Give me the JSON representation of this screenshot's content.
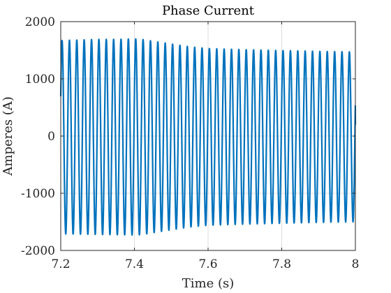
{
  "chart_data": {
    "type": "line",
    "title": "Phase Current",
    "xlabel": "Time (s)",
    "ylabel": "Amperes (A)",
    "xlim": [
      7.2,
      8.0
    ],
    "ylim": [
      -2000,
      2000
    ],
    "x_ticks": [
      7.2,
      7.4,
      7.6,
      7.8,
      8.0
    ],
    "x_tick_labels": [
      "7.2",
      "7.4",
      "7.6",
      "7.8",
      "8"
    ],
    "y_ticks": [
      -2000,
      -1000,
      0,
      1000,
      2000
    ],
    "y_tick_labels": [
      "-2000",
      "-1000",
      "0",
      "1000",
      "2000"
    ],
    "grid": true,
    "series": [
      {
        "color": "#0072BD",
        "waveform": "sinusoid",
        "frequency_hz": 50,
        "phase_at_start_deg": 25,
        "envelope": {
          "t": [
            7.2,
            7.25,
            7.3,
            7.35,
            7.4,
            7.42,
            7.45,
            7.5,
            7.55,
            7.6,
            7.7,
            7.8,
            7.9,
            8.0
          ],
          "peak": [
            1670,
            1680,
            1690,
            1690,
            1700,
            1690,
            1660,
            1610,
            1560,
            1530,
            1510,
            1495,
            1480,
            1470
          ],
          "trough": [
            -1710,
            -1715,
            -1720,
            -1725,
            -1730,
            -1725,
            -1690,
            -1640,
            -1590,
            -1560,
            -1540,
            -1525,
            -1510,
            -1500
          ]
        },
        "end_value": 200
      }
    ]
  }
}
